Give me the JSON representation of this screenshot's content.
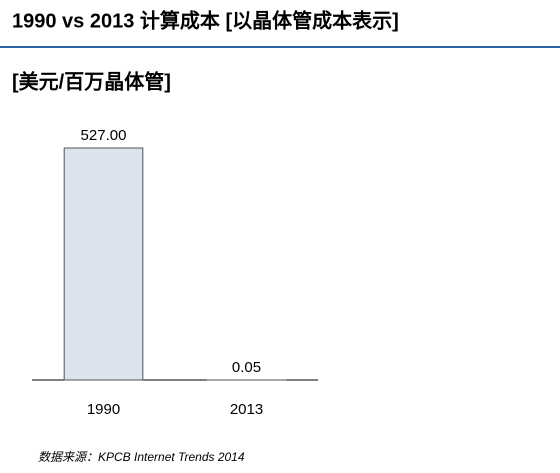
{
  "chart_data": {
    "type": "bar",
    "title": "1990 vs 2013 计算成本 [以晶体管成本表示]",
    "subtitle": "[美元/百万晶体管]",
    "categories": [
      "1990",
      "2013"
    ],
    "values": [
      527,
      0.05
    ],
    "value_labels": [
      "527.00",
      "0.05"
    ],
    "color": "#dce3ef",
    "source": "数据来源：KPCB Internet Trends 2014"
  }
}
